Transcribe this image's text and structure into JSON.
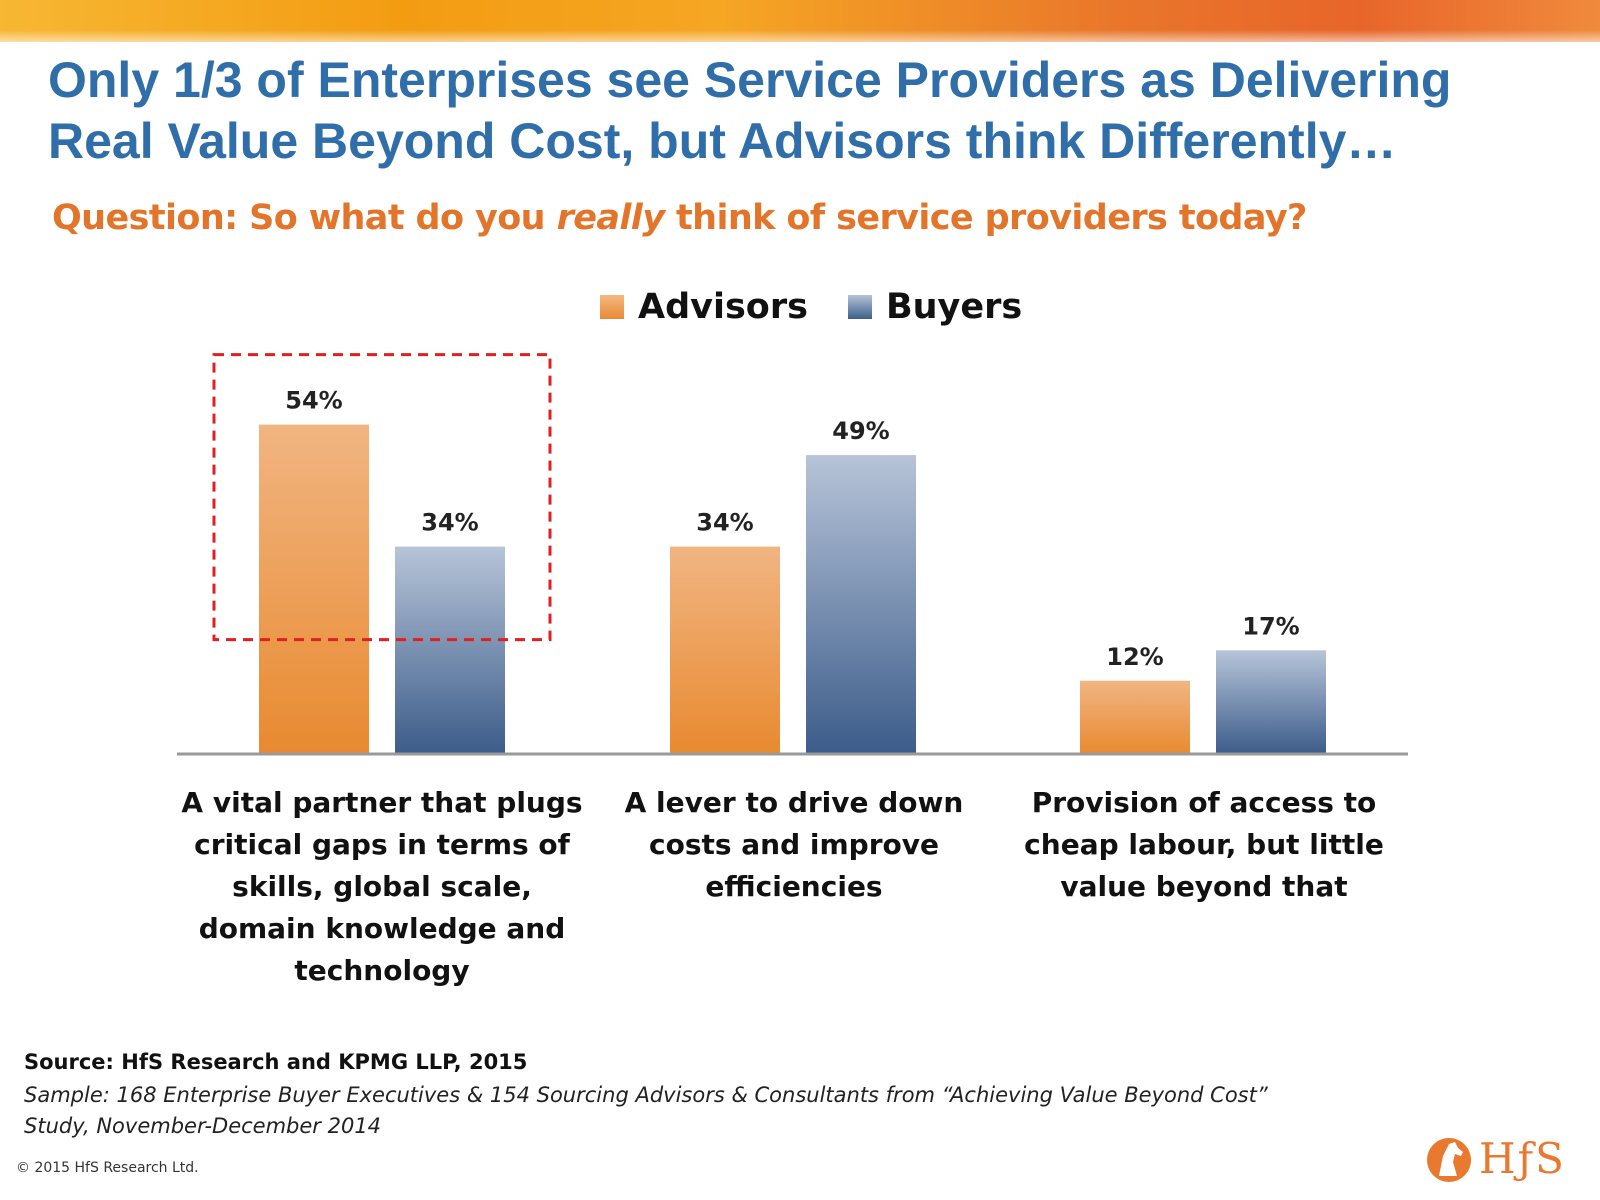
{
  "title": "Only 1/3 of Enterprises see Service Providers as Delivering Real Value Beyond Cost, but Advisors think Differently…",
  "question": {
    "before": "Question: So what do you ",
    "emphasis": "really",
    "after": " think of service providers today?"
  },
  "legend": [
    {
      "label": "Advisors",
      "color": "#f0a35c"
    },
    {
      "label": "Buyers",
      "color": "#5f7da6"
    }
  ],
  "chart_data": {
    "type": "bar",
    "categories": [
      "A vital partner that plugs critical gaps in terms of skills, global scale, domain knowledge and technology",
      "A lever to drive down costs and improve efficiencies",
      "Provision of access to cheap labour, but little value beyond that"
    ],
    "series": [
      {
        "name": "Advisors",
        "values": [
          54,
          34,
          12
        ],
        "labels": [
          "54%",
          "34%",
          "12%"
        ]
      },
      {
        "name": "Buyers",
        "values": [
          34,
          49,
          17
        ],
        "labels": [
          "34%",
          "49%",
          "17%"
        ]
      }
    ],
    "ylim": [
      0,
      60
    ],
    "highlight": {
      "category_index": 0,
      "style": "dashed-red-box"
    }
  },
  "footer": {
    "source": "Source:  HfS Research and KPMG LLP, 2015",
    "sample": "Sample: 168 Enterprise Buyer Executives & 154 Sourcing Advisors & Consultants from “Achieving Value Beyond Cost” Study, November-December 2014",
    "copyright": "© 2015 HfS Research Ltd."
  },
  "logo": {
    "text": "HƒS",
    "icon": "horse-head-icon"
  }
}
